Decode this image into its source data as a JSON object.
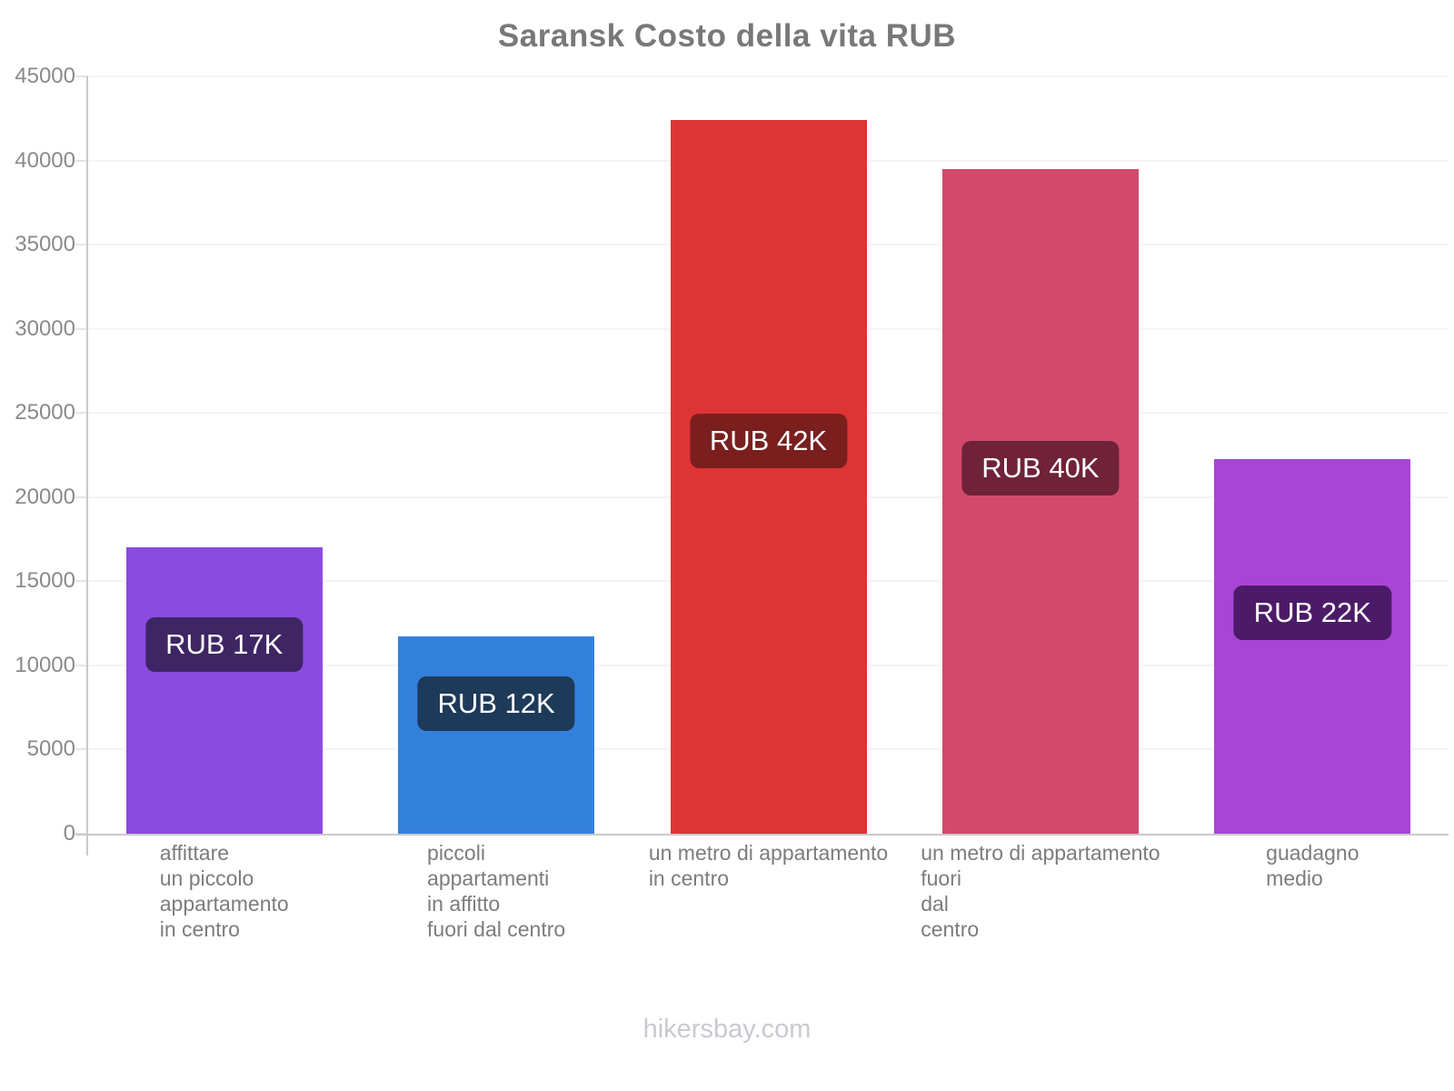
{
  "title": "Saransk Costo della vita RUB",
  "footer": "hikersbay.com",
  "chart_data": {
    "type": "bar",
    "title": "Saransk Costo della vita RUB",
    "currency": "RUB",
    "categories": [
      [
        "affittare",
        "un piccolo",
        "appartamento",
        "in centro"
      ],
      [
        "piccoli",
        "appartamenti",
        "in affitto",
        "fuori dal centro"
      ],
      [
        "un metro di appartamento",
        "in centro"
      ],
      [
        "un metro di appartamento",
        "fuori",
        "dal",
        "centro"
      ],
      [
        "guadagno",
        "medio"
      ]
    ],
    "values": [
      17000,
      11700,
      42400,
      39500,
      22250
    ],
    "bar_labels": [
      "RUB 17K",
      "RUB 12K",
      "RUB 42K",
      "RUB 40K",
      "RUB 22K"
    ],
    "bar_colors": [
      "#8A4BE0",
      "#3380DC",
      "#DF3434",
      "#D14A6B",
      "#A845D6"
    ],
    "badge_colors": [
      "#3E2564",
      "#1E3A59",
      "#7A1E1E",
      "#6F2239",
      "#4C1B68"
    ],
    "xlabel": "",
    "ylabel": "",
    "ylim": [
      0,
      45000
    ],
    "yticks": [
      0,
      5000,
      10000,
      15000,
      20000,
      25000,
      30000,
      35000,
      40000,
      45000
    ],
    "grid": true,
    "legend": false
  }
}
